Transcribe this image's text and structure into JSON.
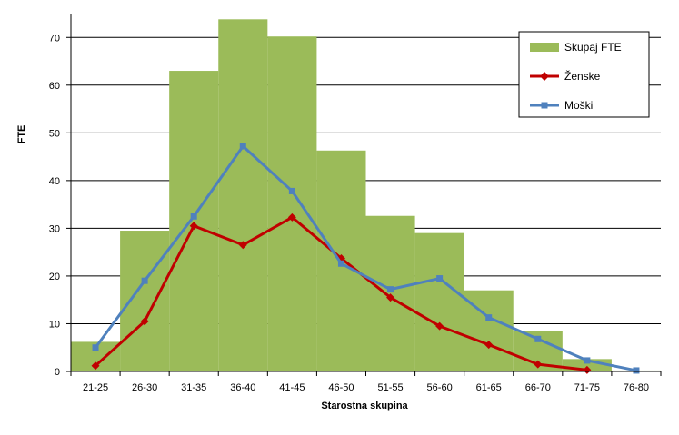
{
  "chart_data": {
    "type": "bar",
    "xlabel": "Starostna skupina",
    "ylabel": "FTE",
    "ylim": [
      0,
      75
    ],
    "yticks": [
      0,
      10,
      20,
      30,
      40,
      50,
      60,
      70
    ],
    "grid": true,
    "legend_position": "top-right",
    "categories": [
      "21-25",
      "26-30",
      "31-35",
      "36-40",
      "41-45",
      "46-50",
      "51-55",
      "56-60",
      "61-65",
      "66-70",
      "71-75",
      "76-80"
    ],
    "series": [
      {
        "name": "Skupaj FTE",
        "kind": "bar",
        "color": "#9BBB59",
        "values": [
          6.2,
          29.5,
          63,
          73.8,
          70.2,
          46.3,
          32.6,
          29.0,
          17.0,
          8.4,
          2.6,
          0.2
        ]
      },
      {
        "name": "Ženske",
        "kind": "line",
        "marker": "diamond",
        "color": "#C00000",
        "values": [
          1.2,
          10.5,
          30.5,
          26.5,
          32.3,
          23.7,
          15.5,
          9.5,
          5.6,
          1.5,
          0.3,
          null
        ]
      },
      {
        "name": "Moški",
        "kind": "line",
        "marker": "square",
        "color": "#4F81BD",
        "values": [
          5.0,
          19.0,
          32.5,
          47.2,
          37.8,
          22.6,
          17.2,
          19.5,
          11.3,
          6.8,
          2.3,
          0.2
        ]
      }
    ]
  }
}
